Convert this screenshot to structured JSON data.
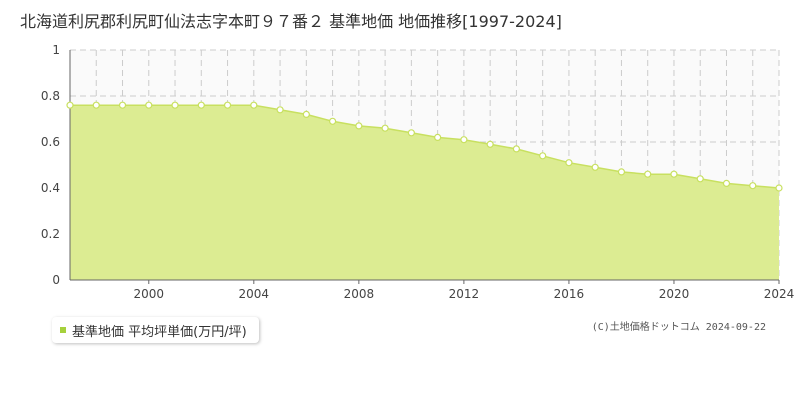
{
  "title": "北海道利尻郡利尻町仙法志字本町９７番２ 基準地価 地価推移[1997-2024]",
  "copyright": "(C)土地価格ドットコム 2024-09-22",
  "colors": {
    "fill": "#dcec92",
    "line": "#c8e060",
    "marker": "#a6d13c",
    "grid": "#cccccc"
  },
  "chart_data": {
    "type": "area",
    "title": "北海道利尻郡利尻町仙法志字本町９７番２ 基準地価 地価推移[1997-2024]",
    "xlabel": "",
    "ylabel": "",
    "xlim": [
      1997,
      2024
    ],
    "ylim": [
      0,
      1
    ],
    "x_ticks": [
      2000,
      2004,
      2008,
      2012,
      2016,
      2020,
      2024
    ],
    "y_ticks": [
      0,
      0.2,
      0.4,
      0.6,
      0.8,
      1
    ],
    "y_tick_labels": [
      "0",
      "0.2",
      "0.4",
      "0.6",
      "0.8",
      "1"
    ],
    "grid": true,
    "legend_position": "bottom-left",
    "series": [
      {
        "name": "基準地価 平均坪単価(万円/坪)",
        "x": [
          1997,
          1998,
          1999,
          2000,
          2001,
          2002,
          2003,
          2004,
          2005,
          2006,
          2007,
          2008,
          2009,
          2010,
          2011,
          2012,
          2013,
          2014,
          2015,
          2016,
          2017,
          2018,
          2019,
          2020,
          2021,
          2022,
          2023,
          2024
        ],
        "values": [
          0.76,
          0.76,
          0.76,
          0.76,
          0.76,
          0.76,
          0.76,
          0.76,
          0.74,
          0.72,
          0.69,
          0.67,
          0.66,
          0.64,
          0.62,
          0.61,
          0.59,
          0.57,
          0.54,
          0.51,
          0.49,
          0.47,
          0.46,
          0.46,
          0.44,
          0.42,
          0.41,
          0.4
        ]
      }
    ]
  }
}
